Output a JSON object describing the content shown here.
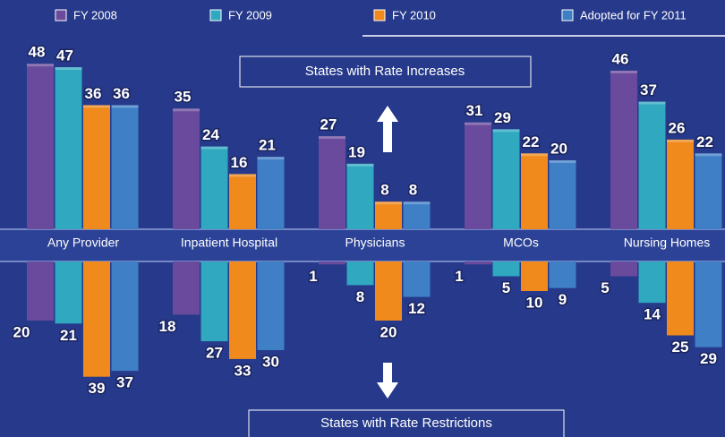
{
  "chart_data": {
    "type": "bar",
    "annotations": [
      "States with Rate Increases",
      "States with Rate Restrictions"
    ],
    "categories": [
      "Any Provider",
      "Inpatient Hospital",
      "Physicians",
      "MCOs",
      "Nursing Homes"
    ],
    "series": [
      {
        "name": "FY 2008",
        "color": "#6a4a9c",
        "increases": [
          48,
          35,
          27,
          31,
          46
        ],
        "restrictions": [
          20,
          18,
          1,
          1,
          5
        ]
      },
      {
        "name": "FY 2009",
        "color": "#2fa8c0",
        "increases": [
          47,
          24,
          19,
          29,
          37
        ],
        "restrictions": [
          21,
          27,
          8,
          5,
          14
        ]
      },
      {
        "name": "FY 2010",
        "color": "#f08a1c",
        "increases": [
          36,
          16,
          8,
          22,
          26
        ],
        "restrictions": [
          39,
          33,
          20,
          10,
          25
        ]
      },
      {
        "name": "Adopted for FY 2011",
        "color": "#3f7fc6",
        "increases": [
          36,
          21,
          8,
          20,
          22
        ],
        "restrictions": [
          37,
          30,
          12,
          9,
          29
        ]
      }
    ]
  }
}
